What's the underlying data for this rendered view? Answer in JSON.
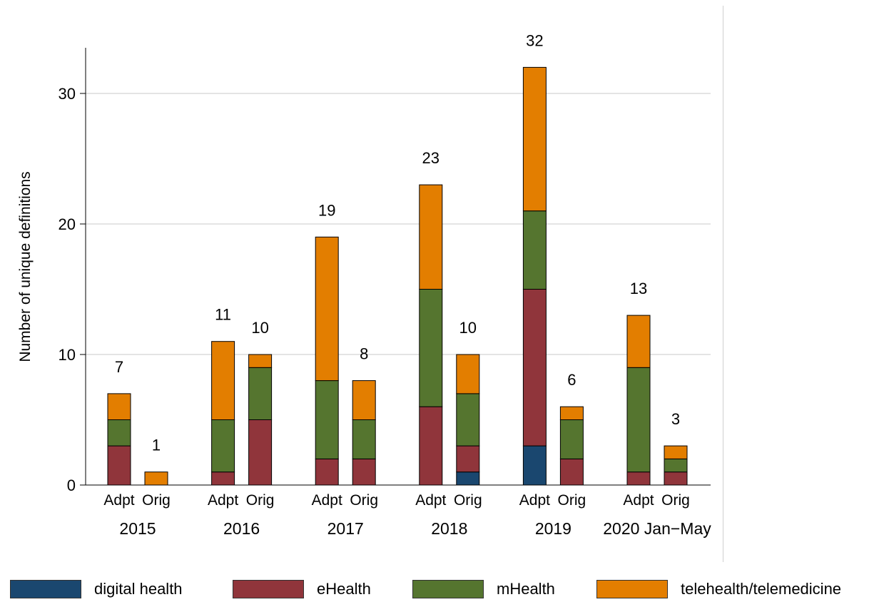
{
  "chart_data": {
    "type": "bar",
    "stacked": true,
    "ylabel": "Number of unique definitions",
    "ylim": [
      0,
      33.5
    ],
    "yticks": [
      0,
      10,
      20,
      30
    ],
    "grid": true,
    "legend_position": "bottom",
    "groups": [
      {
        "label": "2015",
        "bars": [
          {
            "label": "Adpt",
            "total": "7",
            "values": [
              0,
              3,
              2,
              2
            ]
          },
          {
            "label": "Orig",
            "total": "1",
            "values": [
              0,
              0,
              0,
              1
            ]
          }
        ]
      },
      {
        "label": "2016",
        "bars": [
          {
            "label": "Adpt",
            "total": "11",
            "values": [
              0,
              1,
              4,
              6
            ]
          },
          {
            "label": "Orig",
            "total": "10",
            "values": [
              0,
              5,
              4,
              1
            ]
          }
        ]
      },
      {
        "label": "2017",
        "bars": [
          {
            "label": "Adpt",
            "total": "19",
            "values": [
              0,
              2,
              6,
              11
            ]
          },
          {
            "label": "Orig",
            "total": "8",
            "values": [
              0,
              2,
              3,
              3
            ]
          }
        ]
      },
      {
        "label": "2018",
        "bars": [
          {
            "label": "Adpt",
            "total": "23",
            "values": [
              0,
              6,
              9,
              8
            ]
          },
          {
            "label": "Orig",
            "total": "10",
            "values": [
              1,
              2,
              4,
              3
            ]
          }
        ]
      },
      {
        "label": "2019",
        "bars": [
          {
            "label": "Adpt",
            "total": "32",
            "values": [
              3,
              12,
              6,
              11
            ]
          },
          {
            "label": "Orig",
            "total": "6",
            "values": [
              0,
              2,
              3,
              1
            ]
          }
        ]
      },
      {
        "label": "2020 Jan−May",
        "bars": [
          {
            "label": "Adpt",
            "total": "13",
            "values": [
              0,
              1,
              8,
              4
            ]
          },
          {
            "label": "Orig",
            "total": "3",
            "values": [
              0,
              1,
              1,
              1
            ]
          }
        ]
      }
    ],
    "series": [
      {
        "name": "digital health",
        "color": "#1a476f"
      },
      {
        "name": "eHealth",
        "color": "#90353b"
      },
      {
        "name": "mHealth",
        "color": "#55752f"
      },
      {
        "name": "telehealth/telemedicine",
        "color": "#e37e00"
      }
    ]
  }
}
